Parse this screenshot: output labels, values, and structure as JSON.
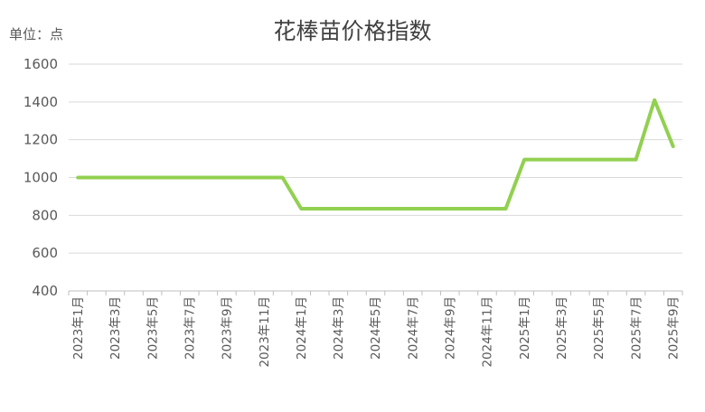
{
  "chart_data": {
    "type": "line",
    "title": "花棒苗价格指数",
    "unit_label": "单位：点",
    "xlabel": "",
    "ylabel": "",
    "ylim": [
      400,
      1600
    ],
    "yticks": [
      "400",
      "600",
      "800",
      "1000",
      "1200",
      "1400",
      "1600"
    ],
    "x_labels": [
      "2023年1月",
      "2023年3月",
      "2023年5月",
      "2023年7月",
      "2023年9月",
      "2023年11月",
      "2024年1月",
      "2024年3月",
      "2024年5月",
      "2024年7月",
      "2024年9月",
      "2024年11月",
      "2025年1月",
      "2025年3月",
      "2025年5月",
      "2025年7月",
      "2025年9月"
    ],
    "grid": true,
    "legend": "none",
    "series": [
      {
        "color": "#92d050",
        "x": [
          "2023年1月",
          "2023年2月",
          "2023年3月",
          "2023年4月",
          "2023年5月",
          "2023年6月",
          "2023年7月",
          "2023年8月",
          "2023年9月",
          "2023年10月",
          "2023年11月",
          "2023年12月",
          "2024年1月",
          "2024年2月",
          "2024年3月",
          "2024年4月",
          "2024年5月",
          "2024年6月",
          "2024年7月",
          "2024年8月",
          "2024年9月",
          "2024年10月",
          "2024年11月",
          "2024年12月",
          "2025年1月",
          "2025年2月",
          "2025年3月",
          "2025年4月",
          "2025年5月",
          "2025年6月",
          "2025年7月",
          "2025年8月",
          "2025年9月"
        ],
        "values": [
          1000,
          1000,
          1000,
          1000,
          1000,
          1000,
          1000,
          1000,
          1000,
          1000,
          1000,
          1000,
          835,
          835,
          835,
          835,
          835,
          835,
          835,
          835,
          835,
          835,
          835,
          835,
          1095,
          1095,
          1095,
          1095,
          1095,
          1095,
          1095,
          1410,
          1165
        ]
      }
    ]
  }
}
